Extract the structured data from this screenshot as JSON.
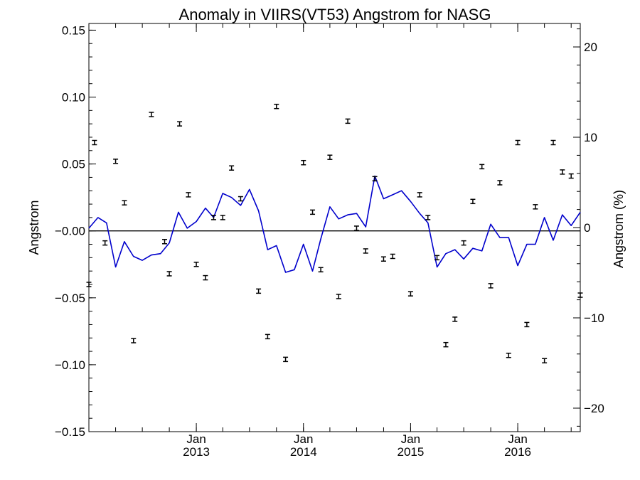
{
  "chart_data": {
    "type": "line",
    "title": "Anomaly in VIIRS(VT53) Angstrom for NASG",
    "ylabel": "Angstrom",
    "y2label": "Angstrom (%)",
    "ylim": [
      -0.15,
      0.155
    ],
    "y2lim": [
      -22.6,
      22.6
    ],
    "xlim": [
      "2012-01-01",
      "2016-08-01"
    ],
    "grid": false,
    "y_ticks": [
      {
        "value": 0.15,
        "label": "0.15"
      },
      {
        "value": 0.1,
        "label": "0.10"
      },
      {
        "value": 0.05,
        "label": "0.05"
      },
      {
        "value": 0.0,
        "label": "−0.00"
      },
      {
        "value": -0.05,
        "label": "−0.05"
      },
      {
        "value": -0.1,
        "label": "−0.10"
      },
      {
        "value": -0.15,
        "label": "−0.15"
      }
    ],
    "y2_ticks": [
      {
        "value": 20,
        "label": "20"
      },
      {
        "value": 10,
        "label": "10"
      },
      {
        "value": 0,
        "label": "0"
      },
      {
        "value": -10,
        "label": "−10"
      },
      {
        "value": -20,
        "label": "−20"
      }
    ],
    "x_ticks": [
      {
        "date": "2013-01-01",
        "label": "Jan",
        "year": "2013"
      },
      {
        "date": "2014-01-01",
        "label": "Jan",
        "year": "2014"
      },
      {
        "date": "2015-01-01",
        "label": "Jan",
        "year": "2015"
      },
      {
        "date": "2016-01-01",
        "label": "Jan",
        "year": "2016"
      }
    ],
    "series": [
      {
        "style": "line",
        "color": "#0000cc",
        "points": [
          [
            "2012-01-01",
            0.002
          ],
          [
            "2012-02-01",
            0.01
          ],
          [
            "2012-03-01",
            0.006
          ],
          [
            "2012-04-01",
            -0.027
          ],
          [
            "2012-05-01",
            -0.008
          ],
          [
            "2012-06-01",
            -0.019
          ],
          [
            "2012-07-01",
            -0.022
          ],
          [
            "2012-08-01",
            -0.018
          ],
          [
            "2012-09-01",
            -0.017
          ],
          [
            "2012-10-01",
            -0.009
          ],
          [
            "2012-11-01",
            0.014
          ],
          [
            "2012-12-01",
            0.002
          ],
          [
            "2013-01-01",
            0.007
          ],
          [
            "2013-02-01",
            0.017
          ],
          [
            "2013-03-01",
            0.01
          ],
          [
            "2013-04-01",
            0.028
          ],
          [
            "2013-05-01",
            0.025
          ],
          [
            "2013-06-01",
            0.019
          ],
          [
            "2013-07-01",
            0.031
          ],
          [
            "2013-08-01",
            0.015
          ],
          [
            "2013-09-01",
            -0.014
          ],
          [
            "2013-10-01",
            -0.011
          ],
          [
            "2013-11-01",
            -0.031
          ],
          [
            "2013-12-01",
            -0.029
          ],
          [
            "2014-01-01",
            -0.01
          ],
          [
            "2014-02-01",
            -0.03
          ],
          [
            "2014-03-01",
            -0.006
          ],
          [
            "2014-04-01",
            0.018
          ],
          [
            "2014-05-01",
            0.009
          ],
          [
            "2014-06-01",
            0.012
          ],
          [
            "2014-07-01",
            0.013
          ],
          [
            "2014-08-01",
            0.003
          ],
          [
            "2014-09-01",
            0.041
          ],
          [
            "2014-10-01",
            0.024
          ],
          [
            "2014-11-01",
            0.027
          ],
          [
            "2014-12-01",
            0.03
          ],
          [
            "2015-01-01",
            0.022
          ],
          [
            "2015-02-01",
            0.013
          ],
          [
            "2015-03-01",
            0.006
          ],
          [
            "2015-04-01",
            -0.027
          ],
          [
            "2015-05-01",
            -0.017
          ],
          [
            "2015-06-01",
            -0.014
          ],
          [
            "2015-07-01",
            -0.021
          ],
          [
            "2015-08-01",
            -0.013
          ],
          [
            "2015-09-01",
            -0.015
          ],
          [
            "2015-10-01",
            0.005
          ],
          [
            "2015-11-01",
            -0.005
          ],
          [
            "2015-12-01",
            -0.005
          ],
          [
            "2016-01-01",
            -0.026
          ],
          [
            "2016-02-01",
            -0.01
          ],
          [
            "2016-03-01",
            -0.01
          ],
          [
            "2016-04-01",
            0.01
          ],
          [
            "2016-05-01",
            -0.007
          ],
          [
            "2016-06-01",
            0.012
          ],
          [
            "2016-07-01",
            0.004
          ],
          [
            "2016-08-01",
            0.014
          ]
        ]
      },
      {
        "style": "errorbar",
        "color": "#000000",
        "points": [
          [
            "2012-01-01",
            -0.04
          ],
          [
            "2012-01-20",
            0.066
          ],
          [
            "2012-02-25",
            -0.009
          ],
          [
            "2012-04-01",
            0.052
          ],
          [
            "2012-05-01",
            0.021
          ],
          [
            "2012-06-01",
            -0.082
          ],
          [
            "2012-08-01",
            0.087
          ],
          [
            "2012-09-15",
            -0.008
          ],
          [
            "2012-10-01",
            -0.032
          ],
          [
            "2012-11-05",
            0.08
          ],
          [
            "2012-12-05",
            0.027
          ],
          [
            "2013-01-01",
            -0.025
          ],
          [
            "2013-02-01",
            -0.035
          ],
          [
            "2013-03-01",
            0.01
          ],
          [
            "2013-04-01",
            0.01
          ],
          [
            "2013-05-01",
            0.047
          ],
          [
            "2013-06-01",
            0.024
          ],
          [
            "2013-08-01",
            -0.045
          ],
          [
            "2013-09-01",
            -0.079
          ],
          [
            "2013-10-01",
            0.093
          ],
          [
            "2013-11-01",
            -0.096
          ],
          [
            "2014-01-01",
            0.051
          ],
          [
            "2014-02-01",
            0.014
          ],
          [
            "2014-03-01",
            -0.029
          ],
          [
            "2014-04-01",
            0.055
          ],
          [
            "2014-05-01",
            -0.049
          ],
          [
            "2014-06-01",
            0.082
          ],
          [
            "2014-07-01",
            0.002
          ],
          [
            "2014-08-01",
            -0.015
          ],
          [
            "2014-09-01",
            0.039
          ],
          [
            "2014-10-01",
            -0.021
          ],
          [
            "2014-11-01",
            -0.019
          ],
          [
            "2015-01-01",
            -0.047
          ],
          [
            "2015-02-01",
            0.027
          ],
          [
            "2015-03-01",
            0.01
          ],
          [
            "2015-04-01",
            -0.02
          ],
          [
            "2015-05-01",
            -0.085
          ],
          [
            "2015-06-01",
            -0.066
          ],
          [
            "2015-07-01",
            -0.009
          ],
          [
            "2015-08-01",
            0.022
          ],
          [
            "2015-09-01",
            0.048
          ],
          [
            "2015-10-01",
            -0.041
          ],
          [
            "2015-11-01",
            0.036
          ],
          [
            "2015-12-01",
            -0.093
          ],
          [
            "2016-01-01",
            0.066
          ],
          [
            "2016-02-01",
            -0.07
          ],
          [
            "2016-03-01",
            0.018
          ],
          [
            "2016-04-01",
            -0.097
          ],
          [
            "2016-05-01",
            0.066
          ],
          [
            "2016-06-01",
            0.044
          ],
          [
            "2016-07-01",
            0.041
          ],
          [
            "2016-08-01",
            -0.048
          ]
        ]
      }
    ]
  }
}
